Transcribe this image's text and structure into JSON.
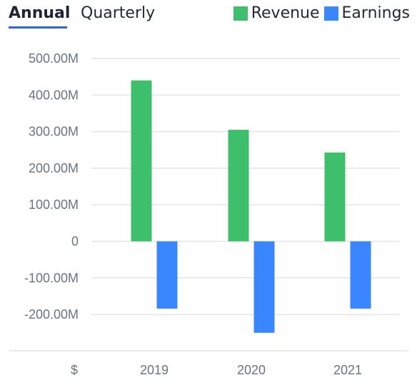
{
  "tabs": [
    {
      "label": "Annual",
      "active": true
    },
    {
      "label": "Quarterly",
      "active": false
    }
  ],
  "legend": [
    {
      "name": "Revenue",
      "color": "#3dbf6c"
    },
    {
      "name": "Earnings",
      "color": "#3a86ff"
    }
  ],
  "chart_data": {
    "type": "bar",
    "categories": [
      "2019",
      "2020",
      "2021"
    ],
    "series": [
      {
        "name": "Revenue",
        "values": [
          440000000,
          305000000,
          243000000
        ],
        "color": "#3dbf6c"
      },
      {
        "name": "Earnings",
        "values": [
          -184000000,
          -250000000,
          -184000000
        ],
        "color": "#3a86ff"
      }
    ],
    "y_ticks": [
      500000000,
      400000000,
      300000000,
      200000000,
      100000000,
      0,
      -100000000,
      -200000000
    ],
    "y_tick_labels": [
      "500.00M",
      "400.00M",
      "300.00M",
      "200.00M",
      "100.00M",
      "0",
      "-100.00M",
      "-200.00M"
    ],
    "ylim": [
      -300000000,
      500000000
    ],
    "currency_label": "$",
    "grid": true,
    "legend_position": "top-right"
  }
}
